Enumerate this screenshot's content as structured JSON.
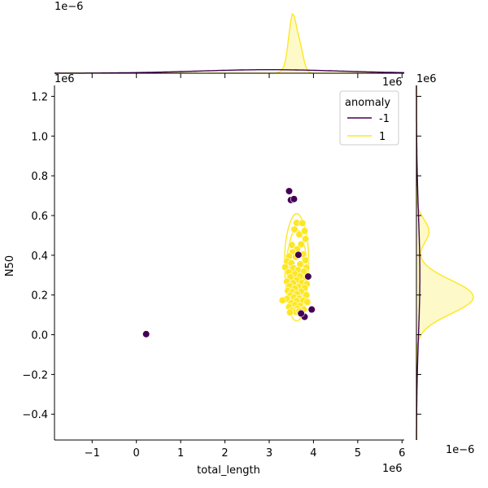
{
  "chart_data": {
    "type": "scatter",
    "xlabel": "total_length",
    "ylabel": "N50",
    "x_offset": "1e6",
    "y_offset": "1e6",
    "xlim": [
      -1.85,
      6.05
    ],
    "ylim": [
      -0.53,
      1.255
    ],
    "x_ticks": [
      -1,
      0,
      1,
      2,
      3,
      4,
      5,
      6
    ],
    "x_tick_labels": [
      "−1",
      "0",
      "1",
      "2",
      "3",
      "4",
      "5",
      "6"
    ],
    "y_ticks": [
      -0.4,
      -0.2,
      0.0,
      0.2,
      0.4,
      0.6,
      0.8,
      1.0,
      1.2
    ],
    "y_tick_labels": [
      "−0.4",
      "−0.2",
      "0.0",
      "0.2",
      "0.4",
      "0.6",
      "0.8",
      "1.0",
      "1.2"
    ],
    "grid": false,
    "legend": {
      "title": "anomaly",
      "placement": "upper-right",
      "entries": [
        {
          "label": "-1",
          "color": "#440154"
        },
        {
          "label": "1",
          "color": "#fde725"
        }
      ]
    },
    "colors": {
      "anomaly": "#440154",
      "normal": "#fde725",
      "normal_edge": "#ffffff"
    },
    "series": [
      {
        "name": "-1",
        "points": [
          [
            0.22,
            0.003
          ],
          [
            3.45,
            0.723
          ],
          [
            3.49,
            0.678
          ],
          [
            3.56,
            0.683
          ],
          [
            3.66,
            0.402
          ],
          [
            3.88,
            0.293
          ],
          [
            3.96,
            0.127
          ],
          [
            3.8,
            0.09
          ],
          [
            3.72,
            0.107
          ]
        ]
      },
      {
        "name": "1",
        "points": [
          [
            3.62,
            0.563
          ],
          [
            3.75,
            0.562
          ],
          [
            3.57,
            0.53
          ],
          [
            3.68,
            0.505
          ],
          [
            3.8,
            0.522
          ],
          [
            3.82,
            0.482
          ],
          [
            3.72,
            0.455
          ],
          [
            3.51,
            0.452
          ],
          [
            3.63,
            0.43
          ],
          [
            3.53,
            0.415
          ],
          [
            3.77,
            0.405
          ],
          [
            3.45,
            0.395
          ],
          [
            3.6,
            0.392
          ],
          [
            3.82,
            0.375
          ],
          [
            3.4,
            0.37
          ],
          [
            3.5,
            0.36
          ],
          [
            3.7,
            0.355
          ],
          [
            3.84,
            0.338
          ],
          [
            3.36,
            0.34
          ],
          [
            3.55,
            0.335
          ],
          [
            3.65,
            0.325
          ],
          [
            3.44,
            0.315
          ],
          [
            3.78,
            0.318
          ],
          [
            3.58,
            0.305
          ],
          [
            3.7,
            0.295
          ],
          [
            3.48,
            0.29
          ],
          [
            3.83,
            0.283
          ],
          [
            3.62,
            0.275
          ],
          [
            3.4,
            0.268
          ],
          [
            3.54,
            0.26
          ],
          [
            3.74,
            0.262
          ],
          [
            3.85,
            0.255
          ],
          [
            3.46,
            0.245
          ],
          [
            3.66,
            0.24
          ],
          [
            3.58,
            0.232
          ],
          [
            3.8,
            0.235
          ],
          [
            3.42,
            0.222
          ],
          [
            3.52,
            0.215
          ],
          [
            3.72,
            0.218
          ],
          [
            3.63,
            0.205
          ],
          [
            3.48,
            0.198
          ],
          [
            3.84,
            0.2
          ],
          [
            3.56,
            0.188
          ],
          [
            3.68,
            0.182
          ],
          [
            3.4,
            0.18
          ],
          [
            3.3,
            0.173
          ],
          [
            3.62,
            0.17
          ],
          [
            3.77,
            0.172
          ],
          [
            3.5,
            0.16
          ],
          [
            3.86,
            0.165
          ],
          [
            3.58,
            0.15
          ],
          [
            3.7,
            0.145
          ],
          [
            3.45,
            0.14
          ],
          [
            3.64,
            0.132
          ],
          [
            3.52,
            0.122
          ],
          [
            3.78,
            0.128
          ],
          [
            3.6,
            0.115
          ],
          [
            3.47,
            0.112
          ],
          [
            3.68,
            0.12
          ]
        ]
      }
    ],
    "kde_contours": {
      "color": "#fde725",
      "levels": [
        {
          "center": [
            3.62,
            0.33
          ],
          "rx": 0.27,
          "ry_up": 0.28,
          "ry_down": 0.26
        },
        {
          "center": [
            3.62,
            0.31
          ],
          "rx": 0.22,
          "ry_up": 0.22,
          "ry_down": 0.2
        },
        {
          "center": [
            3.62,
            0.28
          ],
          "rx": 0.17,
          "ry_up": 0.15,
          "ry_down": 0.14
        },
        {
          "center": [
            3.62,
            0.24
          ],
          "rx": 0.12,
          "ry_up": 0.09,
          "ry_down": 0.09
        },
        {
          "center": [
            3.6,
            0.21
          ],
          "rx": 0.07,
          "ry_up": 0.045,
          "ry_down": 0.045
        }
      ]
    },
    "marginal_x": {
      "offset_label": "1e−6",
      "peak_x": 3.55,
      "normal": {
        "mean": 3.57,
        "sd": 0.12,
        "color": "#fde725"
      },
      "anomaly": {
        "mean": 3.0,
        "sd": 1.6,
        "color": "#440154",
        "scale": 0.06
      }
    },
    "marginal_y": {
      "offset_label": "1e−6",
      "normal": {
        "mean": 0.19,
        "sd": 0.085,
        "tail_mean": 0.52,
        "tail_sd": 0.06,
        "tail_weight": 0.22,
        "color": "#fde725"
      },
      "anomaly": {
        "mean": 0.3,
        "sd": 0.3,
        "color": "#440154",
        "scale": 0.06
      }
    }
  }
}
